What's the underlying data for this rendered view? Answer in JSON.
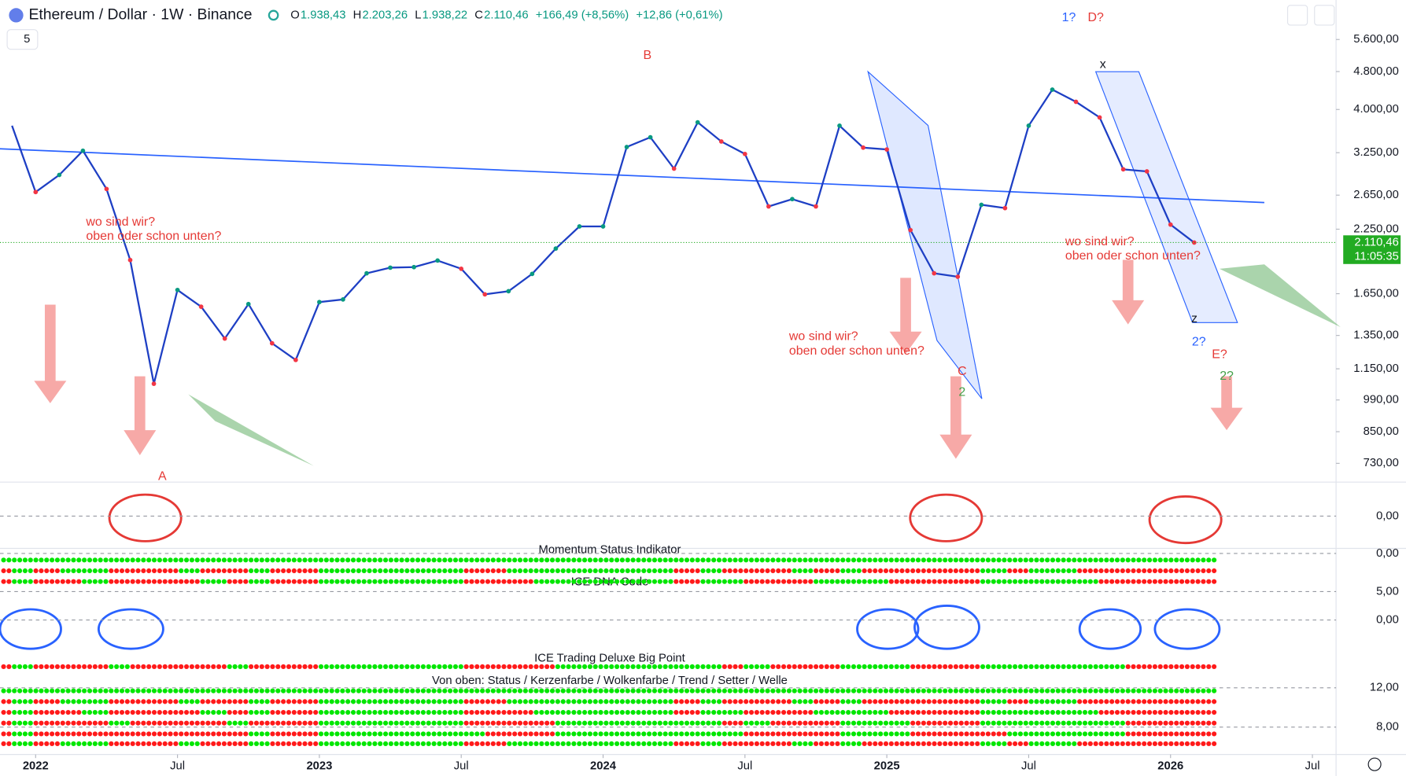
{
  "header": {
    "symbol": "Ethereum / Dollar · 1W · Binance",
    "ohlc": [
      {
        "key": "O",
        "value": "1.938,43"
      },
      {
        "key": "H",
        "value": "2.203,26"
      },
      {
        "key": "L",
        "value": "1.938,22"
      },
      {
        "key": "C",
        "value": "2.110,46"
      }
    ],
    "change": "+166,49 (+8,56%)",
    "change_ext": "+12,86 (+0,61%)",
    "indicator_count": "5"
  },
  "chart_data": {
    "type": "line",
    "color": "#1e3fc4",
    "log_scale": true,
    "x": [
      "2021-12",
      "2022-01",
      "2022-02",
      "2022-03",
      "2022-04",
      "2022-05",
      "2022-06",
      "2022-07",
      "2022-08",
      "2022-09",
      "2022-10",
      "2022-11",
      "2022-12",
      "2023-01",
      "2023-02",
      "2023-03",
      "2023-04",
      "2023-05",
      "2023-06",
      "2023-07",
      "2023-08",
      "2023-09",
      "2023-10",
      "2023-11",
      "2023-12",
      "2024-01",
      "2024-02",
      "2024-03",
      "2024-04",
      "2024-05",
      "2024-06",
      "2024-07",
      "2024-08",
      "2024-09",
      "2024-10",
      "2024-11",
      "2024-12",
      "2025-01",
      "2025-02",
      "2025-03",
      "2025-04",
      "2025-05",
      "2025-06",
      "2025-07",
      "2025-08",
      "2025-09",
      "2025-10",
      "2025-11",
      "2025-12",
      "2026-01",
      "2026-02"
    ],
    "values": [
      3700,
      2690,
      2920,
      3280,
      2730,
      1940,
      1070,
      1680,
      1550,
      1330,
      1570,
      1300,
      1200,
      1585,
      1605,
      1820,
      1870,
      1875,
      1935,
      1860,
      1645,
      1670,
      1815,
      2050,
      2280,
      2280,
      3340,
      3500,
      3010,
      3760,
      3430,
      3230,
      2510,
      2600,
      2510,
      3700,
      3330,
      3300,
      2240,
      1820,
      1790,
      2530,
      2490,
      3700,
      4400,
      4150,
      3850,
      3000,
      2970,
      2300,
      2110
    ],
    "xlim": [
      "2021-11",
      "2026-08"
    ],
    "ylim": [
      670,
      6770
    ],
    "xticks": [
      {
        "value": "2022-01",
        "label": "2022"
      },
      {
        "value": "2022-07",
        "label": "Jul"
      },
      {
        "value": "2023-01",
        "label": "2023"
      },
      {
        "value": "2023-07",
        "label": "Jul"
      },
      {
        "value": "2024-01",
        "label": "2024"
      },
      {
        "value": "2024-07",
        "label": "Jul"
      },
      {
        "value": "2025-01",
        "label": "2025"
      },
      {
        "value": "2025-07",
        "label": "Jul"
      },
      {
        "value": "2026-01",
        "label": "2026"
      },
      {
        "value": "2026-07",
        "label": "Jul"
      }
    ],
    "yticks": [
      {
        "value": 5600,
        "label": "5.600,00"
      },
      {
        "value": 4800,
        "label": "4.800,00"
      },
      {
        "value": 4000,
        "label": "4.000,00"
      },
      {
        "value": 3250,
        "label": "3.250,00"
      },
      {
        "value": 2650,
        "label": "2.650,00"
      },
      {
        "value": 2250,
        "label": "2.250,00"
      },
      {
        "value": 1650,
        "label": "1.650,00"
      },
      {
        "value": 1350,
        "label": "1.350,00"
      },
      {
        "value": 1150,
        "label": "1.150,00"
      },
      {
        "value": 990,
        "label": "990,00"
      },
      {
        "value": 850,
        "label": "850,00"
      },
      {
        "value": 730,
        "label": "730,00"
      }
    ],
    "last_price": {
      "value": 2110.46,
      "label": "2.110,46"
    },
    "countdown": "11:05:35",
    "annotations": [
      {
        "text": "wo sind wir?",
        "color": "#e53935"
      },
      {
        "text": "oben oder schon unten?",
        "color": "#e53935"
      },
      {
        "text": "wo sind wir?",
        "color": "#e53935"
      },
      {
        "text": "oben oder schon unten?",
        "color": "#e53935"
      },
      {
        "text": "wo sind wir?",
        "color": "#e53935"
      },
      {
        "text": "oben oder schon unten?",
        "color": "#e53935"
      },
      {
        "text": "A",
        "color": "#e53935"
      },
      {
        "text": "B",
        "color": "#e53935"
      },
      {
        "text": "C",
        "color": "#e53935"
      },
      {
        "text": "2",
        "color": "#43a047"
      },
      {
        "text": "1?",
        "color": "#2962ff"
      },
      {
        "text": "D?",
        "color": "#e53935"
      },
      {
        "text": "x",
        "color": "#131722"
      },
      {
        "text": "z",
        "color": "#131722"
      },
      {
        "text": "2?",
        "color": "#2962ff"
      },
      {
        "text": "E?",
        "color": "#e53935"
      },
      {
        "text": "2?",
        "color": "#43a047"
      }
    ]
  },
  "panes": [
    {
      "title": "",
      "ylim": [
        -400,
        400
      ],
      "yticks": [
        {
          "value": 0,
          "label": "0,00"
        }
      ]
    },
    {
      "title": "Momentum Status Indikator",
      "ylim": [
        -9,
        1
      ],
      "yticks": [
        {
          "value": 0,
          "label": "0,00"
        }
      ]
    },
    {
      "title": "ICE DNA Code",
      "ylim": [
        -5.2,
        6.6
      ],
      "yticks": [
        {
          "value": 5,
          "label": "5,00"
        },
        {
          "value": 0,
          "label": "0,00"
        }
      ]
    },
    {
      "title": "ICE Trading Deluxe Big Point",
      "ylim": [
        0,
        1
      ],
      "yticks": []
    },
    {
      "title": "Von oben: Status / Kerzenfarbe / Wolkenfarbe / Trend / Setter / Welle",
      "ylim": [
        5.4,
        13.6
      ],
      "yticks": [
        {
          "value": 12,
          "label": "12,00"
        },
        {
          "value": 8,
          "label": "8,00"
        }
      ]
    }
  ]
}
